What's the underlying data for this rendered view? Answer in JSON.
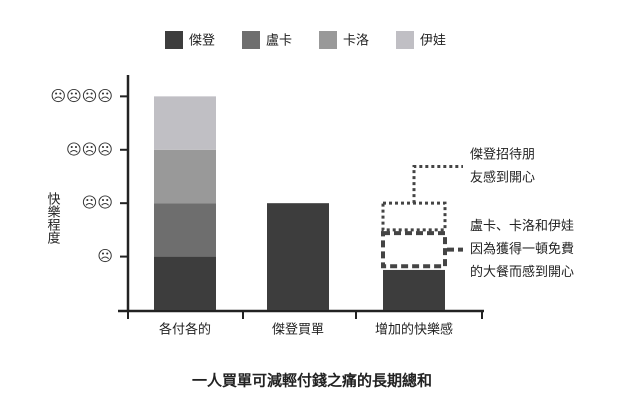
{
  "chart_data": {
    "type": "stacked-bar",
    "title": "一人買單可減輕付錢之痛的長期總和",
    "y_label": "快樂程度",
    "categories": [
      "各付各的",
      "傑登買單",
      "增加的快樂感"
    ],
    "series": [
      {
        "name": "傑登",
        "color": "#3d3d3d",
        "values": [
          1,
          2,
          0.75
        ]
      },
      {
        "name": "盧卡",
        "color": "#6e6e6e",
        "values": [
          1,
          null,
          null
        ]
      },
      {
        "name": "卡洛",
        "color": "#999999",
        "values": [
          1,
          null,
          null
        ]
      },
      {
        "name": "伊娃",
        "color": "#c0bfc4",
        "values": [
          1,
          null,
          null
        ]
      }
    ],
    "ylim": [
      0,
      4.4
    ],
    "yticks": [
      {
        "value": 1,
        "label": "☹"
      },
      {
        "value": 2,
        "label": "☹☹"
      },
      {
        "value": 3,
        "label": "☹☹☹"
      },
      {
        "value": 4,
        "label": "☹☹☹☹"
      }
    ],
    "annotations": [
      {
        "category": 2,
        "range": [
          1.5,
          2.0
        ],
        "style": "dotted",
        "lines": [
          "傑登招待朋",
          "友感到開心"
        ]
      },
      {
        "category": 2,
        "range": [
          0.82,
          1.44
        ],
        "style": "dashed",
        "lines": [
          "盧卡、卡洛和伊娃",
          "因為獲得一頓免費",
          "的大餐而感到開心"
        ]
      }
    ]
  }
}
